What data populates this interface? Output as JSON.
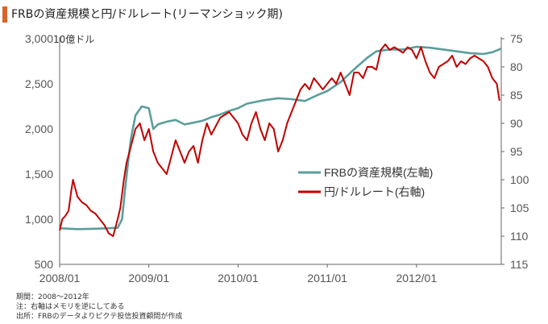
{
  "header": {
    "title": "FRBの資産規模と円/ドルレート(リーマンショック期)",
    "unit_label": "10億ドル"
  },
  "footnotes": [
    "期間：2008～2012年",
    "注：右軸はメモリを逆にしてある",
    "出所：FRBのデータよりピクテ投信投資顧問が作成"
  ],
  "colors": {
    "frb": "#5b9e9c",
    "jpy": "#c00000",
    "accent": "#d9632a",
    "axis": "#666666"
  },
  "chart_data": {
    "type": "line",
    "x_ticks": [
      "2008/01",
      "2009/01",
      "2010/01",
      "2011/01",
      "2012/01"
    ],
    "x_range": [
      2008.0,
      2012.95
    ],
    "left_axis": {
      "ticks": [
        "3,000",
        "2,500",
        "2,000",
        "1,500",
        "1,000",
        "500"
      ],
      "range": [
        500,
        3000
      ]
    },
    "right_axis": {
      "ticks": [
        "75",
        "80",
        "85",
        "90",
        "95",
        "100",
        "105",
        "110",
        "115"
      ],
      "range": [
        75,
        115
      ],
      "inverted": true
    },
    "series": [
      {
        "name": "FRBの資産規模(左軸)",
        "axis": "left",
        "points": [
          [
            2008.0,
            900
          ],
          [
            2008.2,
            890
          ],
          [
            2008.4,
            895
          ],
          [
            2008.55,
            900
          ],
          [
            2008.65,
            905
          ],
          [
            2008.7,
            1000
          ],
          [
            2008.73,
            1300
          ],
          [
            2008.77,
            1650
          ],
          [
            2008.8,
            1900
          ],
          [
            2008.85,
            2150
          ],
          [
            2008.92,
            2250
          ],
          [
            2009.0,
            2230
          ],
          [
            2009.05,
            2000
          ],
          [
            2009.1,
            2050
          ],
          [
            2009.2,
            2080
          ],
          [
            2009.3,
            2100
          ],
          [
            2009.4,
            2050
          ],
          [
            2009.5,
            2070
          ],
          [
            2009.6,
            2090
          ],
          [
            2009.7,
            2130
          ],
          [
            2009.8,
            2160
          ],
          [
            2009.9,
            2200
          ],
          [
            2010.0,
            2230
          ],
          [
            2010.1,
            2280
          ],
          [
            2010.2,
            2300
          ],
          [
            2010.3,
            2320
          ],
          [
            2010.45,
            2340
          ],
          [
            2010.6,
            2330
          ],
          [
            2010.75,
            2310
          ],
          [
            2010.9,
            2380
          ],
          [
            2011.0,
            2420
          ],
          [
            2011.15,
            2520
          ],
          [
            2011.3,
            2660
          ],
          [
            2011.45,
            2790
          ],
          [
            2011.55,
            2860
          ],
          [
            2011.7,
            2880
          ],
          [
            2011.85,
            2880
          ],
          [
            2012.0,
            2910
          ],
          [
            2012.15,
            2900
          ],
          [
            2012.3,
            2880
          ],
          [
            2012.45,
            2860
          ],
          [
            2012.6,
            2840
          ],
          [
            2012.75,
            2830
          ],
          [
            2012.85,
            2850
          ],
          [
            2012.95,
            2890
          ]
        ]
      },
      {
        "name": "円/ドルレート(右軸)",
        "axis": "right",
        "points": [
          [
            2008.0,
            109
          ],
          [
            2008.03,
            107
          ],
          [
            2008.06,
            106.5
          ],
          [
            2008.1,
            105.5
          ],
          [
            2008.13,
            102
          ],
          [
            2008.15,
            100
          ],
          [
            2008.2,
            103
          ],
          [
            2008.25,
            104
          ],
          [
            2008.3,
            104.5
          ],
          [
            2008.35,
            105.5
          ],
          [
            2008.4,
            106
          ],
          [
            2008.45,
            107
          ],
          [
            2008.5,
            108
          ],
          [
            2008.55,
            109.5
          ],
          [
            2008.6,
            110
          ],
          [
            2008.65,
            107
          ],
          [
            2008.68,
            105
          ],
          [
            2008.72,
            100
          ],
          [
            2008.75,
            97
          ],
          [
            2008.8,
            94
          ],
          [
            2008.85,
            91
          ],
          [
            2008.9,
            90
          ],
          [
            2008.95,
            93
          ],
          [
            2009.0,
            91
          ],
          [
            2009.05,
            95
          ],
          [
            2009.1,
            97
          ],
          [
            2009.15,
            98
          ],
          [
            2009.2,
            99
          ],
          [
            2009.25,
            96
          ],
          [
            2009.3,
            93
          ],
          [
            2009.35,
            95
          ],
          [
            2009.4,
            97
          ],
          [
            2009.45,
            95
          ],
          [
            2009.5,
            94
          ],
          [
            2009.55,
            97
          ],
          [
            2009.6,
            93
          ],
          [
            2009.65,
            90
          ],
          [
            2009.7,
            92
          ],
          [
            2009.8,
            89
          ],
          [
            2009.9,
            88
          ],
          [
            2010.0,
            90
          ],
          [
            2010.05,
            92
          ],
          [
            2010.1,
            93
          ],
          [
            2010.15,
            90
          ],
          [
            2010.2,
            88
          ],
          [
            2010.25,
            91
          ],
          [
            2010.3,
            93
          ],
          [
            2010.35,
            90
          ],
          [
            2010.4,
            91
          ],
          [
            2010.45,
            95
          ],
          [
            2010.5,
            93
          ],
          [
            2010.55,
            90
          ],
          [
            2010.6,
            88
          ],
          [
            2010.65,
            86
          ],
          [
            2010.7,
            84
          ],
          [
            2010.75,
            83
          ],
          [
            2010.8,
            84
          ],
          [
            2010.85,
            82
          ],
          [
            2010.9,
            83
          ],
          [
            2010.95,
            84
          ],
          [
            2011.0,
            83
          ],
          [
            2011.05,
            82
          ],
          [
            2011.1,
            83
          ],
          [
            2011.15,
            81
          ],
          [
            2011.2,
            83
          ],
          [
            2011.25,
            85
          ],
          [
            2011.3,
            81
          ],
          [
            2011.35,
            81
          ],
          [
            2011.4,
            82
          ],
          [
            2011.45,
            80
          ],
          [
            2011.5,
            80
          ],
          [
            2011.55,
            80.5
          ],
          [
            2011.6,
            77
          ],
          [
            2011.65,
            76
          ],
          [
            2011.7,
            77
          ],
          [
            2011.75,
            76.5
          ],
          [
            2011.8,
            77
          ],
          [
            2011.85,
            77.5
          ],
          [
            2011.9,
            76.5
          ],
          [
            2011.95,
            77
          ],
          [
            2012.0,
            78.5
          ],
          [
            2012.05,
            76.5
          ],
          [
            2012.1,
            79
          ],
          [
            2012.15,
            81
          ],
          [
            2012.2,
            82
          ],
          [
            2012.25,
            80
          ],
          [
            2012.3,
            79.5
          ],
          [
            2012.35,
            79
          ],
          [
            2012.4,
            78
          ],
          [
            2012.45,
            80
          ],
          [
            2012.5,
            79
          ],
          [
            2012.55,
            79.5
          ],
          [
            2012.6,
            78.5
          ],
          [
            2012.65,
            78
          ],
          [
            2012.7,
            78.5
          ],
          [
            2012.75,
            79
          ],
          [
            2012.8,
            80
          ],
          [
            2012.85,
            82
          ],
          [
            2012.9,
            83
          ],
          [
            2012.93,
            86
          ]
        ]
      }
    ]
  }
}
